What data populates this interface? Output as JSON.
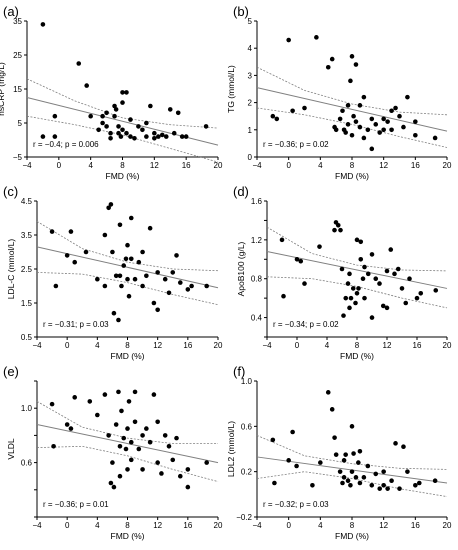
{
  "chart_data": [
    {
      "type": "scatter",
      "label": "(a)",
      "ylabel": "hsCRP (mg/L)",
      "xlabel": "FMD (%)",
      "stat": "r = −0.4; p = 0.006",
      "xlim": [
        -4,
        20
      ],
      "ylim": [
        -5,
        35
      ],
      "xticks": [
        -4,
        0,
        4,
        8,
        12,
        16,
        20
      ],
      "yticks": [
        -5,
        5,
        15,
        25,
        35
      ],
      "regression": {
        "x": [
          -4,
          20
        ],
        "y": [
          12.5,
          -1.5
        ]
      },
      "ci_upper": {
        "x": [
          -4,
          2,
          8,
          14,
          20
        ],
        "y": [
          18,
          11.5,
          6.5,
          4.5,
          3.5
        ]
      },
      "ci_lower": {
        "x": [
          -4,
          2,
          8,
          14,
          20
        ],
        "y": [
          7,
          4.5,
          1.5,
          -2.5,
          -6.5
        ]
      },
      "points": [
        [
          -2,
          34
        ],
        [
          -2,
          1
        ],
        [
          -0.5,
          7
        ],
        [
          -0.5,
          1
        ],
        [
          2.5,
          22.5
        ],
        [
          3.5,
          16
        ],
        [
          4,
          7
        ],
        [
          5,
          3
        ],
        [
          5.5,
          7
        ],
        [
          5.5,
          5
        ],
        [
          6,
          8
        ],
        [
          6,
          4
        ],
        [
          6.5,
          2
        ],
        [
          6.5,
          0.5
        ],
        [
          7,
          10
        ],
        [
          7,
          7
        ],
        [
          7.2,
          9
        ],
        [
          7.5,
          4
        ],
        [
          7.5,
          2
        ],
        [
          7.8,
          1
        ],
        [
          8,
          14
        ],
        [
          8,
          11
        ],
        [
          8,
          3
        ],
        [
          8.5,
          14
        ],
        [
          8.5,
          2
        ],
        [
          9,
          6
        ],
        [
          9,
          1
        ],
        [
          9.5,
          0.5
        ],
        [
          10,
          4
        ],
        [
          10.5,
          3
        ],
        [
          11,
          5
        ],
        [
          11,
          1
        ],
        [
          11.5,
          10
        ],
        [
          12,
          2
        ],
        [
          12,
          0.5
        ],
        [
          12.5,
          1
        ],
        [
          13,
          1.5
        ],
        [
          13.5,
          1
        ],
        [
          14,
          9
        ],
        [
          14.5,
          2
        ],
        [
          15,
          8
        ],
        [
          15.5,
          1
        ],
        [
          16,
          1
        ],
        [
          18.5,
          4
        ]
      ]
    },
    {
      "type": "scatter",
      "label": "(b)",
      "ylabel": "TG (mmol/L)",
      "xlabel": "FMD (%)",
      "stat": "r = −0.36; p = 0.02",
      "xlim": [
        -4,
        20
      ],
      "ylim": [
        0,
        5
      ],
      "xticks": [
        -4,
        0,
        4,
        8,
        12,
        16,
        20
      ],
      "yticks": [
        0,
        1,
        2,
        3,
        4,
        5
      ],
      "regression": {
        "x": [
          -4,
          20
        ],
        "y": [
          2.55,
          0.95
        ]
      },
      "ci_upper": {
        "x": [
          -4,
          2,
          8,
          14,
          20
        ],
        "y": [
          3.3,
          2.45,
          1.95,
          1.65,
          1.55
        ]
      },
      "ci_lower": {
        "x": [
          -4,
          2,
          8,
          14,
          20
        ],
        "y": [
          1.8,
          1.55,
          1.2,
          0.75,
          0.35
        ]
      },
      "points": [
        [
          -2,
          1.5
        ],
        [
          -1.5,
          1.4
        ],
        [
          0,
          4.3
        ],
        [
          0.5,
          1.7
        ],
        [
          2,
          1.8
        ],
        [
          3.5,
          4.4
        ],
        [
          5,
          3.3
        ],
        [
          5.5,
          3.6
        ],
        [
          5.8,
          1.1
        ],
        [
          6,
          1.0
        ],
        [
          6.5,
          1.4
        ],
        [
          6.8,
          1.7
        ],
        [
          7,
          1.0
        ],
        [
          7.2,
          0.9
        ],
        [
          7.5,
          1.9
        ],
        [
          7.5,
          1.2
        ],
        [
          7.8,
          2.8
        ],
        [
          8,
          3.7
        ],
        [
          8,
          0.8
        ],
        [
          8.2,
          1.5
        ],
        [
          8.5,
          3.4
        ],
        [
          8.5,
          1.3
        ],
        [
          9,
          1.9
        ],
        [
          9,
          1.1
        ],
        [
          9.5,
          2.2
        ],
        [
          9.5,
          0.7
        ],
        [
          10,
          1.0
        ],
        [
          10.5,
          0.3
        ],
        [
          10.5,
          1.4
        ],
        [
          11,
          1.2
        ],
        [
          11.5,
          0.9
        ],
        [
          12,
          1.4
        ],
        [
          12,
          1.0
        ],
        [
          12.5,
          1.3
        ],
        [
          13,
          1.7
        ],
        [
          13,
          1.0
        ],
        [
          13.5,
          1.8
        ],
        [
          14,
          1.5
        ],
        [
          14.5,
          1.1
        ],
        [
          15,
          2.2
        ],
        [
          16,
          1.3
        ],
        [
          16,
          0.8
        ],
        [
          18.5,
          0.7
        ]
      ]
    },
    {
      "type": "scatter",
      "label": "(c)",
      "ylabel": "LDL-C (mmol/L)",
      "xlabel": "FMD (%)",
      "stat": "r = −0.31; p = 0.03",
      "xlim": [
        -4,
        20
      ],
      "ylim": [
        0.5,
        4.5
      ],
      "xticks": [
        -4,
        0,
        4,
        8,
        12,
        16,
        20
      ],
      "yticks": [
        0.5,
        1.5,
        2.5,
        3.5,
        4.5
      ],
      "ytick_labels": [
        "0.5",
        "1.5",
        "2.5",
        "3.5",
        "4.5"
      ],
      "regression": {
        "x": [
          -4,
          20
        ],
        "y": [
          3.15,
          1.95
        ]
      },
      "ci_upper": {
        "x": [
          -4,
          2,
          8,
          14,
          20
        ],
        "y": [
          3.9,
          3.1,
          2.7,
          2.5,
          2.45
        ]
      },
      "ci_lower": {
        "x": [
          -4,
          2,
          8,
          14,
          20
        ],
        "y": [
          2.4,
          2.35,
          2.1,
          1.75,
          1.45
        ]
      },
      "points": [
        [
          -2,
          3.6
        ],
        [
          -1.5,
          2.0
        ],
        [
          0,
          2.9
        ],
        [
          0.5,
          3.6
        ],
        [
          1,
          2.7
        ],
        [
          2.5,
          3.0
        ],
        [
          4,
          2.2
        ],
        [
          5,
          3.5
        ],
        [
          5,
          2.0
        ],
        [
          5.5,
          4.3
        ],
        [
          5.8,
          4.4
        ],
        [
          6,
          3.0
        ],
        [
          6.2,
          1.2
        ],
        [
          6.5,
          2.3
        ],
        [
          6.8,
          1.0
        ],
        [
          7,
          3.8
        ],
        [
          7,
          2.3
        ],
        [
          7.2,
          2.0
        ],
        [
          7.5,
          2.6
        ],
        [
          7.8,
          2.8
        ],
        [
          8,
          3.2
        ],
        [
          8,
          2.2
        ],
        [
          8.2,
          1.7
        ],
        [
          8.5,
          4.0
        ],
        [
          8.5,
          2.8
        ],
        [
          9,
          2.2
        ],
        [
          9.5,
          2.7
        ],
        [
          10,
          3.0
        ],
        [
          10,
          2.0
        ],
        [
          10.5,
          2.3
        ],
        [
          11,
          3.7
        ],
        [
          11.5,
          1.5
        ],
        [
          12,
          2.4
        ],
        [
          12,
          1.3
        ],
        [
          13,
          2.2
        ],
        [
          13.5,
          1.8
        ],
        [
          14,
          2.4
        ],
        [
          14.5,
          2.9
        ],
        [
          15,
          2.1
        ],
        [
          16,
          1.9
        ],
        [
          16.5,
          2.0
        ],
        [
          18.5,
          2.0
        ]
      ]
    },
    {
      "type": "scatter",
      "label": "(d)",
      "ylabel": "ApoB100 (g/L)",
      "xlabel": "FMD (%)",
      "stat": "r = −0.34; p = 0.02",
      "xlim": [
        -4,
        20
      ],
      "ylim": [
        0.2,
        1.6
      ],
      "xticks": [
        -4,
        0,
        4,
        8,
        12,
        16,
        20
      ],
      "yticks": [
        0.2,
        0.4,
        0.6,
        0.8,
        1.0,
        1.2,
        1.4,
        1.6
      ],
      "ytick_labels": [
        "",
        "0.4",
        "",
        "0.8",
        "",
        "1.2",
        "",
        "1.6"
      ],
      "regression": {
        "x": [
          -4,
          20
        ],
        "y": [
          1.08,
          0.7
        ]
      },
      "ci_upper": {
        "x": [
          -4,
          2,
          8,
          14,
          20
        ],
        "y": [
          1.33,
          1.06,
          0.94,
          0.89,
          0.88
        ]
      },
      "ci_lower": {
        "x": [
          -4,
          2,
          8,
          14,
          20
        ],
        "y": [
          0.82,
          0.8,
          0.72,
          0.6,
          0.5
        ]
      },
      "points": [
        [
          -2,
          1.2
        ],
        [
          -1.8,
          0.62
        ],
        [
          0,
          1.0
        ],
        [
          0.5,
          0.98
        ],
        [
          1,
          0.75
        ],
        [
          3,
          1.13
        ],
        [
          5,
          1.3
        ],
        [
          5.2,
          1.38
        ],
        [
          5.5,
          1.35
        ],
        [
          5.8,
          1.3
        ],
        [
          6,
          0.9
        ],
        [
          6.2,
          0.42
        ],
        [
          6.5,
          0.6
        ],
        [
          6.8,
          0.75
        ],
        [
          7,
          0.85
        ],
        [
          7,
          0.5
        ],
        [
          7.2,
          0.6
        ],
        [
          7.5,
          0.7
        ],
        [
          7.8,
          0.55
        ],
        [
          8,
          1.2
        ],
        [
          8,
          0.65
        ],
        [
          8.2,
          0.7
        ],
        [
          8.5,
          1.18
        ],
        [
          8.5,
          1.0
        ],
        [
          8.8,
          0.8
        ],
        [
          9,
          0.92
        ],
        [
          9,
          0.6
        ],
        [
          9.5,
          0.85
        ],
        [
          10,
          1.05
        ],
        [
          10,
          0.4
        ],
        [
          10.5,
          0.8
        ],
        [
          11,
          0.75
        ],
        [
          11.5,
          0.52
        ],
        [
          12,
          0.88
        ],
        [
          12,
          0.5
        ],
        [
          12.5,
          1.1
        ],
        [
          13,
          0.85
        ],
        [
          13.5,
          0.9
        ],
        [
          14,
          0.7
        ],
        [
          14.5,
          0.55
        ],
        [
          15,
          0.8
        ],
        [
          16,
          0.6
        ],
        [
          16.5,
          0.65
        ],
        [
          18.5,
          0.68
        ]
      ]
    },
    {
      "type": "scatter",
      "label": "(e)",
      "ylabel": "VLDL",
      "xlabel": "FMD (%)",
      "stat": "r = −0.36; p = 0.01",
      "xlim": [
        -4,
        20
      ],
      "ylim": [
        0.2,
        1.2
      ],
      "xticks": [
        -4,
        0,
        4,
        8,
        12,
        16,
        20
      ],
      "yticks": [
        0.2,
        0.4,
        0.6,
        0.8,
        1.0,
        1.2
      ],
      "ytick_labels": [
        "",
        "",
        "0.6",
        "",
        "1.0",
        ""
      ],
      "regression": {
        "x": [
          -4,
          20
        ],
        "y": [
          0.88,
          0.6
        ]
      },
      "ci_upper": {
        "x": [
          -4,
          2,
          8,
          14,
          20
        ],
        "y": [
          1.05,
          0.86,
          0.78,
          0.74,
          0.74
        ]
      },
      "ci_lower": {
        "x": [
          -4,
          2,
          8,
          14,
          20
        ],
        "y": [
          0.71,
          0.72,
          0.65,
          0.55,
          0.46
        ]
      },
      "points": [
        [
          -2,
          1.03
        ],
        [
          -1.8,
          0.72
        ],
        [
          0,
          0.88
        ],
        [
          0.5,
          0.85
        ],
        [
          1,
          1.08
        ],
        [
          3,
          1.05
        ],
        [
          4,
          0.95
        ],
        [
          5,
          1.1
        ],
        [
          5.5,
          0.8
        ],
        [
          5.8,
          0.45
        ],
        [
          6,
          0.6
        ],
        [
          6.2,
          0.42
        ],
        [
          6.5,
          0.88
        ],
        [
          6.8,
          1.12
        ],
        [
          7,
          0.72
        ],
        [
          7,
          0.5
        ],
        [
          7.2,
          0.98
        ],
        [
          7.5,
          0.78
        ],
        [
          7.8,
          0.7
        ],
        [
          8,
          0.85
        ],
        [
          8,
          0.55
        ],
        [
          8.2,
          1.05
        ],
        [
          8.5,
          0.62
        ],
        [
          8.5,
          0.75
        ],
        [
          9,
          1.12
        ],
        [
          9,
          0.9
        ],
        [
          9.5,
          0.7
        ],
        [
          10,
          0.55
        ],
        [
          10,
          0.8
        ],
        [
          10.5,
          0.85
        ],
        [
          11,
          0.75
        ],
        [
          11.5,
          1.1
        ],
        [
          12,
          0.9
        ],
        [
          12,
          0.6
        ],
        [
          12.5,
          0.52
        ],
        [
          13,
          0.8
        ],
        [
          13.5,
          0.72
        ],
        [
          14,
          0.62
        ],
        [
          14.5,
          0.78
        ],
        [
          15,
          0.5
        ],
        [
          16,
          0.42
        ],
        [
          16,
          0.55
        ],
        [
          18.5,
          0.6
        ]
      ]
    },
    {
      "type": "scatter",
      "label": "(f)",
      "ylabel": "LDL2 (mmol/L)",
      "xlabel": "FMD (%)",
      "stat": "r = −0.32; p = 0.03",
      "xlim": [
        -4,
        20
      ],
      "ylim": [
        -0.2,
        1.0
      ],
      "xticks": [
        -4,
        0,
        4,
        8,
        12,
        16,
        20
      ],
      "yticks": [
        -0.2,
        0.2,
        0.6,
        1.0
      ],
      "ytick_labels": [
        "−0.2",
        "0.2",
        "0.6",
        "1.0"
      ],
      "regression": {
        "x": [
          -4,
          20
        ],
        "y": [
          0.33,
          0.1
        ]
      },
      "ci_upper": {
        "x": [
          -4,
          2,
          8,
          14,
          20
        ],
        "y": [
          0.52,
          0.34,
          0.27,
          0.23,
          0.22
        ]
      },
      "ci_lower": {
        "x": [
          -4,
          2,
          8,
          14,
          20
        ],
        "y": [
          0.14,
          0.2,
          0.14,
          0.05,
          -0.02
        ]
      },
      "points": [
        [
          -2,
          0.48
        ],
        [
          -1.8,
          0.1
        ],
        [
          0,
          0.3
        ],
        [
          0.5,
          0.55
        ],
        [
          1,
          0.25
        ],
        [
          3,
          0.08
        ],
        [
          4,
          0.28
        ],
        [
          5,
          0.9
        ],
        [
          5.5,
          0.75
        ],
        [
          5.8,
          0.5
        ],
        [
          6,
          0.35
        ],
        [
          6.5,
          0.2
        ],
        [
          6.8,
          0.1
        ],
        [
          7,
          0.3
        ],
        [
          7,
          0.15
        ],
        [
          7.2,
          0.35
        ],
        [
          7.5,
          0.12
        ],
        [
          7.8,
          0.08
        ],
        [
          8,
          0.6
        ],
        [
          8,
          0.2
        ],
        [
          8.2,
          0.36
        ],
        [
          8.5,
          0.15
        ],
        [
          8.8,
          0.28
        ],
        [
          9,
          0.38
        ],
        [
          9,
          0.1
        ],
        [
          9.5,
          0.15
        ],
        [
          10,
          0.25
        ],
        [
          10.5,
          0.08
        ],
        [
          11,
          0.18
        ],
        [
          11.5,
          0.05
        ],
        [
          12,
          0.08
        ],
        [
          12,
          0.2
        ],
        [
          12.5,
          0.05
        ],
        [
          13,
          0.12
        ],
        [
          13.5,
          0.45
        ],
        [
          14,
          0.05
        ],
        [
          14.5,
          0.42
        ],
        [
          15,
          0.2
        ],
        [
          16,
          0.08
        ],
        [
          16.5,
          0.1
        ],
        [
          18.5,
          0.12
        ]
      ]
    }
  ]
}
